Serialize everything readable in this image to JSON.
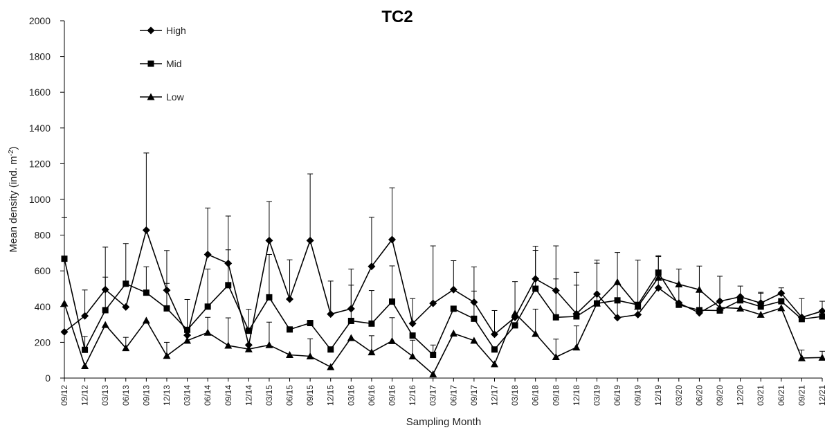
{
  "chart_data": {
    "type": "line",
    "title": "TC2",
    "xlabel": "Sampling Month",
    "ylabel_main": "Mean density (ind. m",
    "ylabel_sup": "-2",
    "ylabel_close": ")",
    "ylim": [
      0,
      2000
    ],
    "yticks": [
      0,
      200,
      400,
      600,
      800,
      1000,
      1200,
      1400,
      1600,
      1800,
      2000
    ],
    "legend_position": "top-left",
    "categories": [
      "09/12",
      "12/12",
      "03/13",
      "06/13",
      "09/13",
      "12/13",
      "03/14",
      "06/14",
      "09/14",
      "12/14",
      "03/15",
      "06/15",
      "09/15",
      "12/15",
      "03/16",
      "06/16",
      "09/16",
      "12/16",
      "03/17",
      "06/17",
      "09/17",
      "12/17",
      "03/18",
      "06/18",
      "09/18",
      "12/18",
      "03/19",
      "06/19",
      "09/19",
      "12/19",
      "03/20",
      "06/20",
      "09/20",
      "12/20",
      "03/21",
      "06/21",
      "09/21",
      "12/21"
    ],
    "series": [
      {
        "name": "High",
        "marker": "diamond",
        "values": [
          258,
          348,
          495,
          398,
          828,
          492,
          240,
          692,
          642,
          185,
          770,
          442,
          770,
          358,
          388,
          625,
          775,
          305,
          418,
          495,
          425,
          245,
          340,
          555,
          490,
          360,
          470,
          338,
          355,
          505,
          420,
          365,
          430,
          455,
          420,
          475,
          340,
          375
        ],
        "error": [
          0,
          145,
          238,
          0,
          432,
          222,
          0,
          260,
          265,
          0,
          218,
          220,
          373,
          185,
          222,
          275,
          290,
          140,
          322,
          162,
          197,
          133,
          200,
          183,
          250,
          232,
          190,
          365,
          305,
          175,
          190,
          262,
          140,
          60,
          60,
          30,
          105,
          55
        ]
      },
      {
        "name": "Mid",
        "marker": "square",
        "values": [
          668,
          158,
          380,
          528,
          478,
          390,
          270,
          400,
          520,
          265,
          452,
          272,
          308,
          160,
          320,
          305,
          428,
          238,
          130,
          388,
          332,
          160,
          295,
          500,
          340,
          345,
          418,
          435,
          410,
          590,
          410,
          380,
          378,
          435,
          400,
          430,
          330,
          345
        ],
        "error": [
          230,
          75,
          185,
          225,
          145,
          140,
          170,
          210,
          198,
          120,
          240,
          0,
          0,
          0,
          200,
          185,
          200,
          0,
          55,
          0,
          155,
          0,
          0,
          215,
          215,
          175,
          225,
          0,
          0,
          95,
          0,
          0,
          0,
          0,
          75,
          0,
          0,
          0
        ]
      },
      {
        "name": "Low",
        "marker": "triangle",
        "values": [
          418,
          68,
          298,
          168,
          322,
          125,
          210,
          255,
          182,
          162,
          185,
          130,
          122,
          62,
          225,
          145,
          208,
          122,
          22,
          250,
          210,
          78,
          362,
          248,
          118,
          172,
          418,
          538,
          400,
          562,
          525,
          495,
          395,
          390,
          355,
          392,
          112,
          115
        ],
        "error": [
          0,
          0,
          0,
          60,
          0,
          75,
          0,
          85,
          155,
          0,
          128,
          0,
          98,
          0,
          0,
          92,
          130,
          90,
          0,
          0,
          0,
          0,
          0,
          138,
          100,
          120,
          0,
          0,
          0,
          0,
          0,
          0,
          0,
          0,
          0,
          0,
          45,
          35
        ]
      }
    ]
  }
}
